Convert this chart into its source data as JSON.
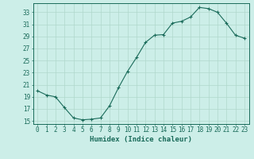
{
  "x": [
    0,
    1,
    2,
    3,
    4,
    5,
    6,
    7,
    8,
    9,
    10,
    11,
    12,
    13,
    14,
    15,
    16,
    17,
    18,
    19,
    20,
    21,
    22,
    23
  ],
  "y": [
    20.0,
    19.3,
    19.0,
    17.2,
    15.5,
    15.2,
    15.3,
    15.5,
    17.5,
    20.5,
    23.2,
    25.5,
    28.0,
    29.2,
    29.3,
    31.2,
    31.5,
    32.2,
    33.8,
    33.6,
    33.0,
    31.2,
    29.2,
    28.7
  ],
  "xlabel": "Humidex (Indice chaleur)",
  "bg_color": "#cceee8",
  "line_color": "#1a6b5a",
  "grid_color": "#b0d8cc",
  "ylim": [
    14.5,
    34.5
  ],
  "yticks": [
    15,
    17,
    19,
    21,
    23,
    25,
    27,
    29,
    31,
    33
  ],
  "xticks": [
    0,
    1,
    2,
    3,
    4,
    5,
    6,
    7,
    8,
    9,
    10,
    11,
    12,
    13,
    14,
    15,
    16,
    17,
    18,
    19,
    20,
    21,
    22,
    23
  ],
  "tick_fontsize": 5.5,
  "xlabel_fontsize": 6.5,
  "marker": "+"
}
